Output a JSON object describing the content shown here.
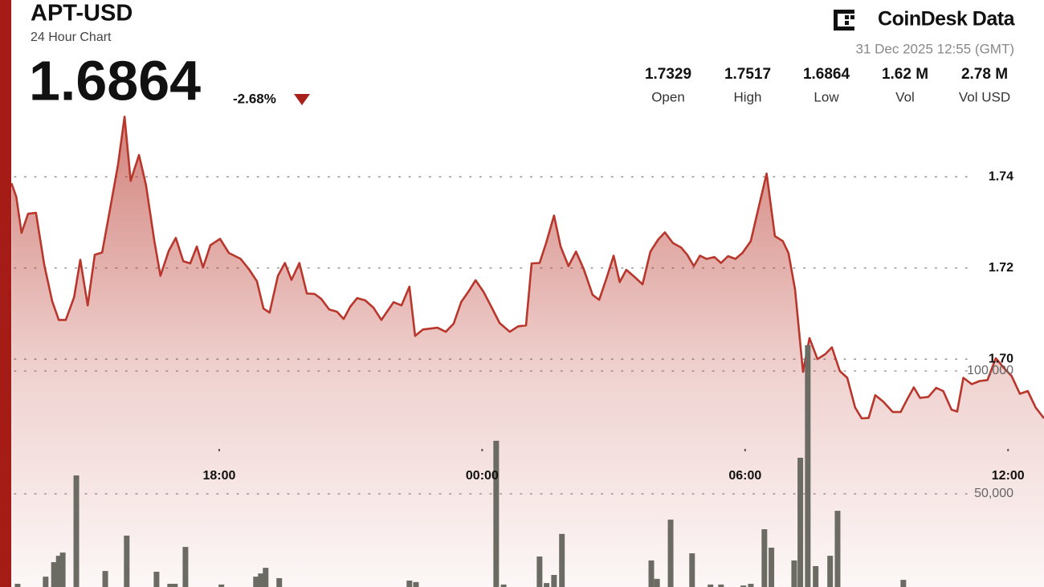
{
  "header": {
    "title": "APT-USD",
    "subtitle": "24 Hour Chart",
    "price": "1.6864",
    "change": "-2.68%",
    "brand": "CoinDesk Data",
    "timestamp": "31 Dec 2025 12:55 (GMT)",
    "stats": [
      {
        "value": "1.7329",
        "label": "Open"
      },
      {
        "value": "1.7517",
        "label": "High"
      },
      {
        "value": "1.6864",
        "label": "Low"
      },
      {
        "value": "1.62 M",
        "label": "Vol"
      },
      {
        "value": "2.78 M",
        "label": "Vol USD"
      }
    ]
  },
  "chart_data": [
    {
      "type": "area",
      "color": "#b8362b",
      "grid": true,
      "xlim": [
        13.255,
        36.82
      ],
      "xticks": [
        {
          "value": 18,
          "label": "18:00"
        },
        {
          "value": 24,
          "label": "00:00"
        },
        {
          "value": 30,
          "label": "06:00"
        },
        {
          "value": 36,
          "label": "12:00"
        }
      ],
      "ylim": [
        1.65,
        1.7788
      ],
      "yticks": [
        {
          "value": 1.7,
          "label": "1.70"
        },
        1.72,
        1.74
      ],
      "x": [
        13.26,
        13.37,
        13.49,
        13.64,
        13.82,
        14.01,
        14.19,
        14.34,
        14.5,
        14.69,
        14.83,
        15.0,
        15.16,
        15.33,
        15.51,
        15.69,
        15.84,
        15.98,
        16.17,
        16.33,
        16.52,
        16.66,
        16.85,
        17.01,
        17.18,
        17.34,
        17.49,
        17.63,
        17.8,
        18.02,
        18.22,
        18.49,
        18.68,
        18.86,
        19.01,
        19.15,
        19.34,
        19.5,
        19.65,
        19.83,
        20.0,
        20.18,
        20.33,
        20.51,
        20.69,
        20.84,
        20.99,
        21.15,
        21.33,
        21.52,
        21.7,
        21.98,
        22.16,
        22.34,
        22.47,
        22.65,
        22.98,
        23.17,
        23.35,
        23.52,
        23.7,
        23.85,
        24.03,
        24.21,
        24.4,
        24.63,
        24.82,
        25.0,
        25.13,
        25.31,
        25.46,
        25.64,
        25.79,
        25.97,
        26.14,
        26.32,
        26.52,
        26.67,
        26.85,
        27.0,
        27.14,
        27.29,
        27.47,
        27.66,
        27.84,
        28.02,
        28.17,
        28.35,
        28.54,
        28.68,
        28.83,
        28.97,
        29.12,
        29.3,
        29.45,
        29.61,
        29.78,
        29.94,
        30.13,
        30.31,
        30.49,
        30.68,
        30.86,
        30.99,
        31.14,
        31.32,
        31.47,
        31.65,
        31.83,
        31.98,
        32.16,
        32.33,
        32.51,
        32.66,
        32.82,
        32.97,
        33.15,
        33.37,
        33.55,
        33.7,
        33.85,
        33.99,
        34.18,
        34.36,
        34.52,
        34.71,
        34.84,
        34.98,
        35.17,
        35.35,
        35.53,
        35.72,
        35.9,
        36.08,
        36.27,
        36.45,
        36.63,
        36.82
      ],
      "values": [
        1.7386,
        1.7356,
        1.7277,
        1.7319,
        1.7321,
        1.7206,
        1.7127,
        1.7086,
        1.7086,
        1.7136,
        1.7218,
        1.7118,
        1.7229,
        1.7234,
        1.733,
        1.7426,
        1.7532,
        1.7391,
        1.7448,
        1.7382,
        1.7259,
        1.7183,
        1.7238,
        1.7266,
        1.7215,
        1.721,
        1.7247,
        1.7201,
        1.725,
        1.7264,
        1.7233,
        1.722,
        1.7197,
        1.7171,
        1.7111,
        1.7102,
        1.7183,
        1.7211,
        1.7174,
        1.7211,
        1.7144,
        1.7143,
        1.7132,
        1.7109,
        1.7104,
        1.7088,
        1.7115,
        1.7134,
        1.7129,
        1.7113,
        1.7086,
        1.7125,
        1.7118,
        1.7159,
        1.7051,
        1.7065,
        1.7069,
        1.706,
        1.7078,
        1.7125,
        1.715,
        1.7173,
        1.7148,
        1.7115,
        1.7079,
        1.706,
        1.7072,
        1.7074,
        1.721,
        1.7211,
        1.7255,
        1.7315,
        1.7247,
        1.7204,
        1.7236,
        1.7197,
        1.7141,
        1.713,
        1.7181,
        1.7227,
        1.7169,
        1.7196,
        1.7181,
        1.7164,
        1.7236,
        1.7263,
        1.7278,
        1.7255,
        1.7245,
        1.7229,
        1.7204,
        1.7227,
        1.722,
        1.7224,
        1.7211,
        1.7226,
        1.722,
        1.7233,
        1.7259,
        1.7333,
        1.7407,
        1.727,
        1.7259,
        1.7233,
        1.7153,
        1.6972,
        1.7046,
        1.7,
        1.7011,
        1.7026,
        1.6974,
        1.6959,
        1.6894,
        1.687,
        1.6871,
        1.6921,
        1.6907,
        1.6884,
        1.6884,
        1.6912,
        1.6938,
        1.6915,
        1.6917,
        1.6937,
        1.693,
        1.6889,
        1.6885,
        1.6959,
        1.6945,
        1.6952,
        1.6954,
        1.7002,
        1.6981,
        1.6963,
        1.6924,
        1.693,
        1.6894,
        1.687
      ]
    },
    {
      "type": "bar",
      "color": "#6b6b63",
      "grid": true,
      "xlim": [
        13.255,
        36.82
      ],
      "ylim": [
        12090,
        250980
      ],
      "yticks": [
        {
          "value": 50000,
          "label": "50,000"
        },
        {
          "value": 100000,
          "label": "100,000"
        }
      ],
      "x": [
        13.4,
        14.04,
        14.23,
        14.34,
        14.43,
        14.74,
        15.4,
        15.89,
        16.57,
        16.88,
        16.99,
        17.23,
        18.05,
        18.84,
        18.95,
        19.06,
        19.37,
        22.34,
        22.49,
        24.32,
        24.49,
        25.31,
        25.47,
        25.64,
        25.82,
        27.86,
        27.99,
        28.3,
        28.79,
        29.21,
        29.45,
        29.96,
        30.13,
        30.44,
        30.6,
        31.12,
        31.26,
        31.43,
        31.61,
        31.94,
        32.11,
        33.61
      ],
      "values": [
        13400,
        16300,
        22200,
        24800,
        26100,
        57500,
        18600,
        33000,
        18300,
        13400,
        13400,
        28400,
        13100,
        16300,
        17600,
        19900,
        15700,
        14700,
        14100,
        71600,
        13100,
        24500,
        13700,
        17000,
        33700,
        22900,
        15400,
        39500,
        25800,
        13100,
        13100,
        12700,
        13400,
        35600,
        28100,
        22900,
        64700,
        110500,
        20600,
        24800,
        43100,
        15000
      ]
    }
  ]
}
